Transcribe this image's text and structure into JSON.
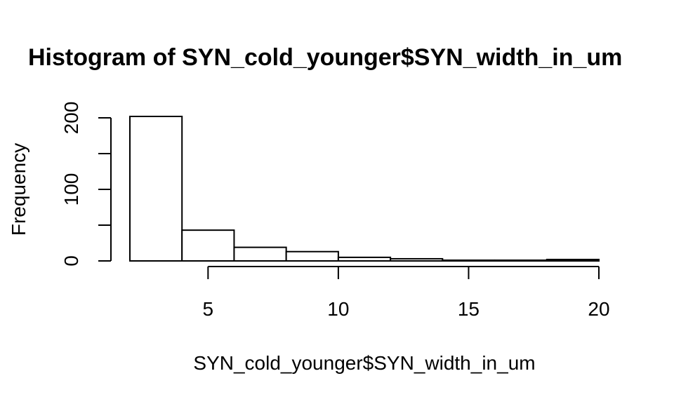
{
  "chart_data": {
    "type": "bar",
    "title": "Histogram of SYN_cold_younger$SYN_width_in_um",
    "xlabel": "SYN_cold_younger$SYN_width_in_um",
    "ylabel": "Frequency",
    "bins": [
      {
        "x0": 2,
        "x1": 4,
        "count": 202
      },
      {
        "x0": 4,
        "x1": 6,
        "count": 43
      },
      {
        "x0": 6,
        "x1": 8,
        "count": 19
      },
      {
        "x0": 8,
        "x1": 10,
        "count": 13
      },
      {
        "x0": 10,
        "x1": 12,
        "count": 5
      },
      {
        "x0": 12,
        "x1": 14,
        "count": 3
      },
      {
        "x0": 14,
        "x1": 16,
        "count": 1
      },
      {
        "x0": 16,
        "x1": 18,
        "count": 1
      },
      {
        "x0": 18,
        "x1": 20,
        "count": 2
      }
    ],
    "xticks": [
      5,
      10,
      15,
      20
    ],
    "yticks": [
      0,
      50,
      100,
      150,
      200
    ],
    "ytick_labels": [
      "0",
      "",
      "100",
      "",
      "200"
    ],
    "xlim": [
      2,
      20
    ],
    "ylim": [
      0,
      202
    ],
    "grid": false,
    "legend": "none"
  }
}
